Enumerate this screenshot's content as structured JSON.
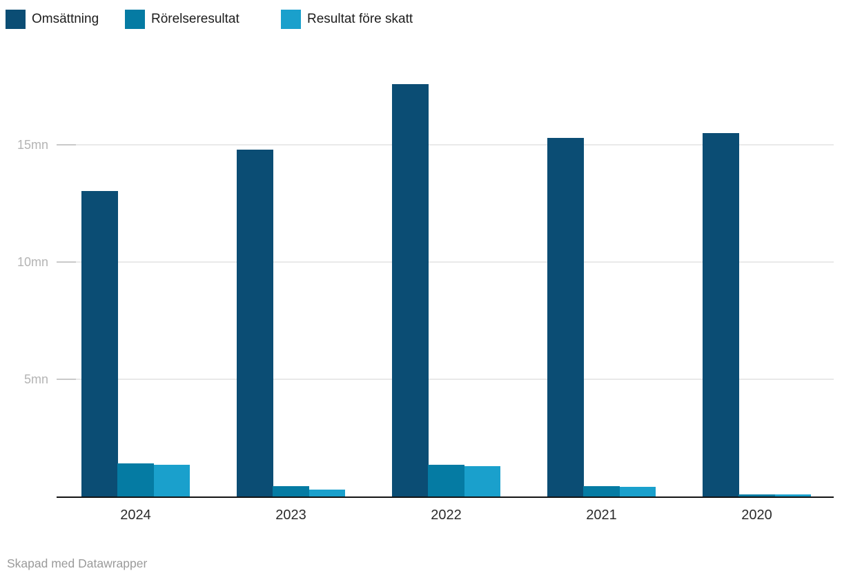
{
  "chart_data": {
    "type": "bar",
    "title": "",
    "xlabel": "",
    "ylabel": "",
    "unit": "mn",
    "grid": true,
    "legend_position": "top",
    "ylim": [
      0,
      21
    ],
    "categories": [
      "2024",
      "2023",
      "2022",
      "2021",
      "2020"
    ],
    "yticks": [
      {
        "value": 5,
        "label": "5mn"
      },
      {
        "value": 10,
        "label": "10mn"
      },
      {
        "value": 15,
        "label": "15mn"
      }
    ],
    "series": [
      {
        "name": "Omsättning",
        "color": "#0b4d74",
        "values": [
          13.0,
          14.75,
          17.55,
          15.25,
          15.45
        ]
      },
      {
        "name": "Rörelseresultat",
        "color": "#057ba3",
        "values": [
          1.4,
          0.45,
          1.35,
          0.45,
          0.1
        ]
      },
      {
        "name": "Resultat före skatt",
        "color": "#1aa0cc",
        "values": [
          1.35,
          0.3,
          1.3,
          0.4,
          0.1
        ]
      }
    ]
  },
  "footer": {
    "credit": "Skapad med Datawrapper"
  }
}
